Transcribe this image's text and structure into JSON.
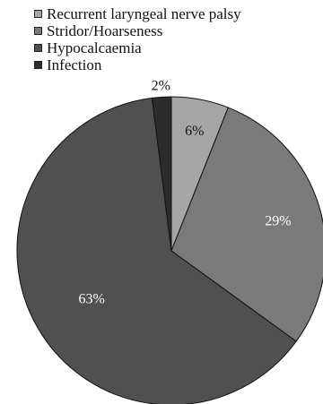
{
  "chart_data": {
    "type": "pie",
    "title": "",
    "categories": [
      "Recurrent laryngeal nerve palsy",
      "Stridor/Hoarseness",
      "Hypocalcaemia",
      "Infection"
    ],
    "values": [
      6,
      29,
      63,
      2
    ],
    "value_labels": [
      "6%",
      "29%",
      "63%",
      "2%"
    ],
    "colors": [
      "#a6a6a6",
      "#7a7a7a",
      "#505050",
      "#2c2c2c"
    ],
    "label_colors": [
      "#111111",
      "#ffffff",
      "#ffffff",
      "#111111"
    ],
    "legend_position": "top-left",
    "start_angle_deg": 0,
    "direction": "clockwise"
  }
}
